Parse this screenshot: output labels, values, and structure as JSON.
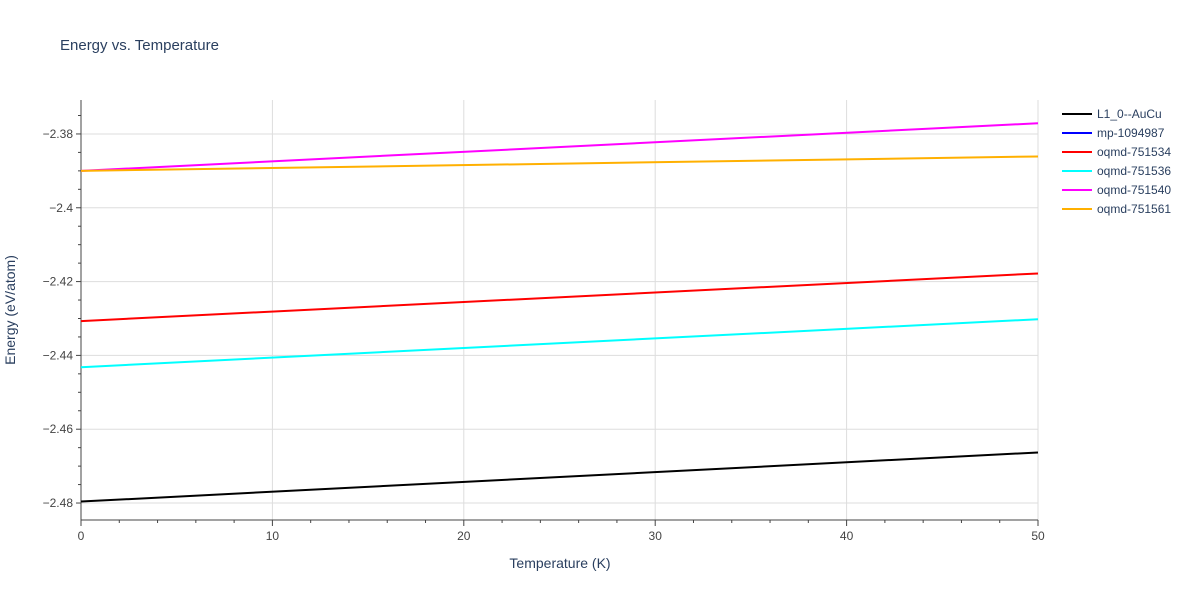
{
  "chart_data": {
    "type": "line",
    "title": "Energy vs. Temperature",
    "xlabel": "Temperature (K)",
    "ylabel": "Energy (eV/atom)",
    "xlim": [
      0,
      50
    ],
    "ylim": [
      -2.4846,
      -2.3708
    ],
    "xticks": [
      0,
      10,
      20,
      30,
      40,
      50
    ],
    "xtick_labels": [
      "0",
      "10",
      "20",
      "30",
      "40",
      "50"
    ],
    "yticks": [
      -2.48,
      -2.46,
      -2.44,
      -2.42,
      -2.4,
      -2.38
    ],
    "ytick_labels": [
      "−2.48",
      "−2.46",
      "−2.44",
      "−2.42",
      "−2.4",
      "−2.38"
    ],
    "grid": true,
    "legend_position": "right",
    "series": [
      {
        "name": "L1_0--AuCu",
        "color": "#000000",
        "x": [
          0,
          50
        ],
        "y": [
          -2.4796,
          -2.4663
        ]
      },
      {
        "name": "mp-1094987",
        "color": "#0000ff",
        "x": [],
        "y": []
      },
      {
        "name": "oqmd-751534",
        "color": "#ff0000",
        "x": [
          0,
          50
        ],
        "y": [
          -2.4307,
          -2.4178
        ]
      },
      {
        "name": "oqmd-751536",
        "color": "#00ffff",
        "x": [
          0,
          50
        ],
        "y": [
          -2.4432,
          -2.4302
        ]
      },
      {
        "name": "oqmd-751540",
        "color": "#ff00ff",
        "x": [
          0,
          50
        ],
        "y": [
          -2.39,
          -2.3771
        ]
      },
      {
        "name": "oqmd-751561",
        "color": "#ffb000",
        "x": [
          0,
          50
        ],
        "y": [
          -2.39,
          -2.3861
        ]
      }
    ]
  }
}
